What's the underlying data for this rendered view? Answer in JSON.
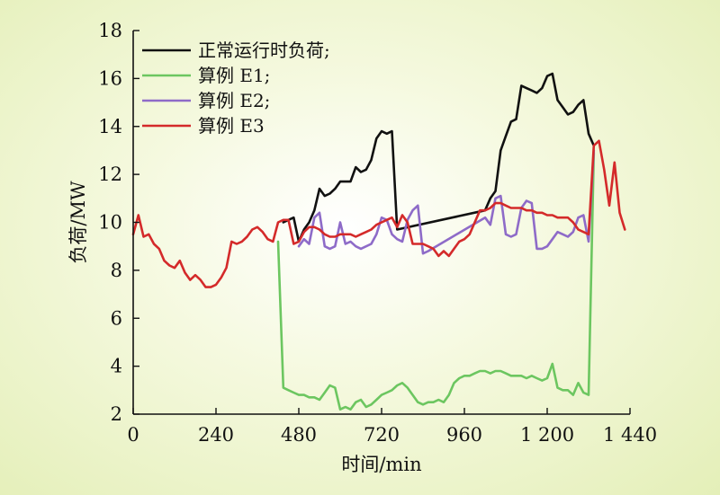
{
  "chart_data": {
    "type": "line",
    "xlabel": "时间/min",
    "ylabel": "负荷/MW",
    "xlim": [
      0,
      1440
    ],
    "ylim": [
      2,
      18
    ],
    "x_ticks": [
      0,
      240,
      480,
      720,
      960,
      1200,
      1440
    ],
    "x_tick_labels": [
      "0",
      "240",
      "480",
      "720",
      "960",
      "1 200",
      "1 440"
    ],
    "y_ticks": [
      2,
      4,
      6,
      8,
      10,
      12,
      14,
      16,
      18
    ],
    "y_tick_labels": [
      "2",
      "4",
      "6",
      "8",
      "10",
      "12",
      "14",
      "16",
      "18"
    ],
    "legend_position": "top-left",
    "series": [
      {
        "name": "正常运行时负荷;",
        "color": "#111111",
        "points": [
          [
            435,
            10.0
          ],
          [
            450,
            10.1
          ],
          [
            465,
            10.2
          ],
          [
            480,
            9.2
          ],
          [
            495,
            9.7
          ],
          [
            510,
            10.0
          ],
          [
            525,
            10.5
          ],
          [
            540,
            11.4
          ],
          [
            555,
            11.1
          ],
          [
            570,
            11.2
          ],
          [
            585,
            11.4
          ],
          [
            600,
            11.7
          ],
          [
            615,
            11.7
          ],
          [
            630,
            11.7
          ],
          [
            645,
            12.3
          ],
          [
            660,
            12.1
          ],
          [
            675,
            12.2
          ],
          [
            690,
            12.6
          ],
          [
            705,
            13.5
          ],
          [
            720,
            13.8
          ],
          [
            735,
            13.7
          ],
          [
            750,
            13.8
          ],
          [
            765,
            9.7
          ],
          [
            1020,
            10.5
          ],
          [
            1035,
            11.0
          ],
          [
            1050,
            11.3
          ],
          [
            1065,
            13.0
          ],
          [
            1080,
            13.6
          ],
          [
            1095,
            14.2
          ],
          [
            1110,
            14.3
          ],
          [
            1125,
            15.7
          ],
          [
            1140,
            15.6
          ],
          [
            1155,
            15.5
          ],
          [
            1170,
            15.4
          ],
          [
            1185,
            15.6
          ],
          [
            1200,
            16.1
          ],
          [
            1215,
            16.2
          ],
          [
            1230,
            15.1
          ],
          [
            1245,
            14.8
          ],
          [
            1260,
            14.5
          ],
          [
            1275,
            14.6
          ],
          [
            1290,
            14.9
          ],
          [
            1305,
            15.1
          ],
          [
            1320,
            13.7
          ],
          [
            1335,
            13.2
          ]
        ]
      },
      {
        "name": "算例 E1;",
        "color": "#6cc660",
        "points": [
          [
            420,
            9.2
          ],
          [
            435,
            3.1
          ],
          [
            450,
            3.0
          ],
          [
            465,
            2.9
          ],
          [
            480,
            2.8
          ],
          [
            495,
            2.8
          ],
          [
            510,
            2.7
          ],
          [
            525,
            2.7
          ],
          [
            540,
            2.6
          ],
          [
            555,
            2.9
          ],
          [
            570,
            3.2
          ],
          [
            585,
            3.1
          ],
          [
            600,
            2.2
          ],
          [
            615,
            2.3
          ],
          [
            630,
            2.2
          ],
          [
            645,
            2.5
          ],
          [
            660,
            2.6
          ],
          [
            675,
            2.3
          ],
          [
            690,
            2.4
          ],
          [
            705,
            2.6
          ],
          [
            720,
            2.8
          ],
          [
            735,
            2.9
          ],
          [
            750,
            3.0
          ],
          [
            765,
            3.2
          ],
          [
            780,
            3.3
          ],
          [
            795,
            3.1
          ],
          [
            810,
            2.8
          ],
          [
            825,
            2.5
          ],
          [
            840,
            2.4
          ],
          [
            855,
            2.5
          ],
          [
            870,
            2.5
          ],
          [
            885,
            2.6
          ],
          [
            900,
            2.5
          ],
          [
            915,
            2.8
          ],
          [
            930,
            3.3
          ],
          [
            945,
            3.5
          ],
          [
            960,
            3.6
          ],
          [
            975,
            3.6
          ],
          [
            990,
            3.7
          ],
          [
            1005,
            3.8
          ],
          [
            1020,
            3.8
          ],
          [
            1035,
            3.7
          ],
          [
            1050,
            3.8
          ],
          [
            1065,
            3.8
          ],
          [
            1080,
            3.7
          ],
          [
            1095,
            3.6
          ],
          [
            1110,
            3.6
          ],
          [
            1125,
            3.6
          ],
          [
            1140,
            3.5
          ],
          [
            1155,
            3.6
          ],
          [
            1170,
            3.5
          ],
          [
            1185,
            3.4
          ],
          [
            1200,
            3.5
          ],
          [
            1215,
            4.1
          ],
          [
            1230,
            3.1
          ],
          [
            1245,
            3.0
          ],
          [
            1260,
            3.0
          ],
          [
            1275,
            2.8
          ],
          [
            1290,
            3.3
          ],
          [
            1305,
            2.9
          ],
          [
            1320,
            2.8
          ],
          [
            1335,
            12.9
          ]
        ]
      },
      {
        "name": "算例 E2;",
        "color": "#8e6bc8",
        "points": [
          [
            480,
            9.0
          ],
          [
            495,
            9.3
          ],
          [
            510,
            9.1
          ],
          [
            525,
            10.2
          ],
          [
            540,
            10.4
          ],
          [
            555,
            9.0
          ],
          [
            570,
            8.9
          ],
          [
            585,
            9.0
          ],
          [
            600,
            10.0
          ],
          [
            615,
            9.1
          ],
          [
            630,
            9.2
          ],
          [
            645,
            9.0
          ],
          [
            660,
            8.9
          ],
          [
            675,
            9.0
          ],
          [
            690,
            9.1
          ],
          [
            705,
            9.5
          ],
          [
            720,
            10.2
          ],
          [
            735,
            10.1
          ],
          [
            750,
            9.5
          ],
          [
            765,
            9.3
          ],
          [
            780,
            9.2
          ],
          [
            795,
            10.1
          ],
          [
            810,
            10.5
          ],
          [
            825,
            10.7
          ],
          [
            840,
            8.7
          ],
          [
            855,
            8.8
          ],
          [
            1020,
            10.2
          ],
          [
            1035,
            9.9
          ],
          [
            1050,
            11.0
          ],
          [
            1065,
            11.1
          ],
          [
            1080,
            9.5
          ],
          [
            1095,
            9.4
          ],
          [
            1110,
            9.5
          ],
          [
            1125,
            10.6
          ],
          [
            1140,
            10.9
          ],
          [
            1155,
            10.8
          ],
          [
            1170,
            8.9
          ],
          [
            1185,
            8.9
          ],
          [
            1200,
            9.0
          ],
          [
            1215,
            9.3
          ],
          [
            1230,
            9.6
          ],
          [
            1245,
            9.5
          ],
          [
            1260,
            9.4
          ],
          [
            1275,
            9.6
          ],
          [
            1290,
            10.2
          ],
          [
            1305,
            10.3
          ],
          [
            1320,
            9.2
          ],
          [
            1335,
            13.0
          ]
        ]
      },
      {
        "name": "算例 E3",
        "color": "#d42a2a",
        "points": [
          [
            0,
            9.5
          ],
          [
            15,
            10.3
          ],
          [
            30,
            9.4
          ],
          [
            45,
            9.5
          ],
          [
            60,
            9.1
          ],
          [
            75,
            8.9
          ],
          [
            90,
            8.4
          ],
          [
            105,
            8.2
          ],
          [
            120,
            8.1
          ],
          [
            135,
            8.4
          ],
          [
            150,
            7.9
          ],
          [
            165,
            7.6
          ],
          [
            180,
            7.8
          ],
          [
            195,
            7.6
          ],
          [
            210,
            7.3
          ],
          [
            225,
            7.3
          ],
          [
            240,
            7.4
          ],
          [
            255,
            7.7
          ],
          [
            270,
            8.1
          ],
          [
            285,
            9.2
          ],
          [
            300,
            9.1
          ],
          [
            315,
            9.2
          ],
          [
            330,
            9.4
          ],
          [
            345,
            9.7
          ],
          [
            360,
            9.8
          ],
          [
            375,
            9.6
          ],
          [
            390,
            9.3
          ],
          [
            405,
            9.2
          ],
          [
            420,
            10.0
          ],
          [
            435,
            10.1
          ],
          [
            450,
            10.1
          ],
          [
            465,
            9.1
          ],
          [
            480,
            9.2
          ],
          [
            495,
            9.6
          ],
          [
            510,
            9.8
          ],
          [
            525,
            9.8
          ],
          [
            540,
            9.7
          ],
          [
            555,
            9.5
          ],
          [
            570,
            9.4
          ],
          [
            585,
            9.4
          ],
          [
            600,
            9.5
          ],
          [
            615,
            9.5
          ],
          [
            630,
            9.5
          ],
          [
            645,
            9.4
          ],
          [
            660,
            9.5
          ],
          [
            675,
            9.6
          ],
          [
            690,
            9.7
          ],
          [
            705,
            9.9
          ],
          [
            720,
            10.0
          ],
          [
            735,
            10.1
          ],
          [
            750,
            10.2
          ],
          [
            765,
            9.8
          ],
          [
            780,
            10.3
          ],
          [
            795,
            10.0
          ],
          [
            810,
            9.1
          ],
          [
            825,
            9.1
          ],
          [
            840,
            9.1
          ],
          [
            855,
            9.0
          ],
          [
            870,
            8.9
          ],
          [
            885,
            8.6
          ],
          [
            900,
            8.8
          ],
          [
            915,
            8.6
          ],
          [
            930,
            8.9
          ],
          [
            945,
            9.2
          ],
          [
            960,
            9.3
          ],
          [
            975,
            9.5
          ],
          [
            990,
            10.0
          ],
          [
            1005,
            10.5
          ],
          [
            1020,
            10.5
          ],
          [
            1035,
            10.6
          ],
          [
            1050,
            10.8
          ],
          [
            1065,
            10.8
          ],
          [
            1080,
            10.7
          ],
          [
            1095,
            10.6
          ],
          [
            1110,
            10.6
          ],
          [
            1125,
            10.6
          ],
          [
            1140,
            10.5
          ],
          [
            1155,
            10.5
          ],
          [
            1170,
            10.4
          ],
          [
            1185,
            10.4
          ],
          [
            1200,
            10.3
          ],
          [
            1215,
            10.3
          ],
          [
            1230,
            10.2
          ],
          [
            1245,
            10.2
          ],
          [
            1260,
            10.2
          ],
          [
            1275,
            10.0
          ],
          [
            1290,
            9.7
          ],
          [
            1305,
            9.6
          ],
          [
            1320,
            9.5
          ],
          [
            1335,
            13.2
          ],
          [
            1350,
            13.4
          ],
          [
            1365,
            12.2
          ],
          [
            1380,
            10.7
          ],
          [
            1395,
            12.5
          ],
          [
            1410,
            10.4
          ],
          [
            1425,
            9.7
          ]
        ]
      }
    ]
  }
}
